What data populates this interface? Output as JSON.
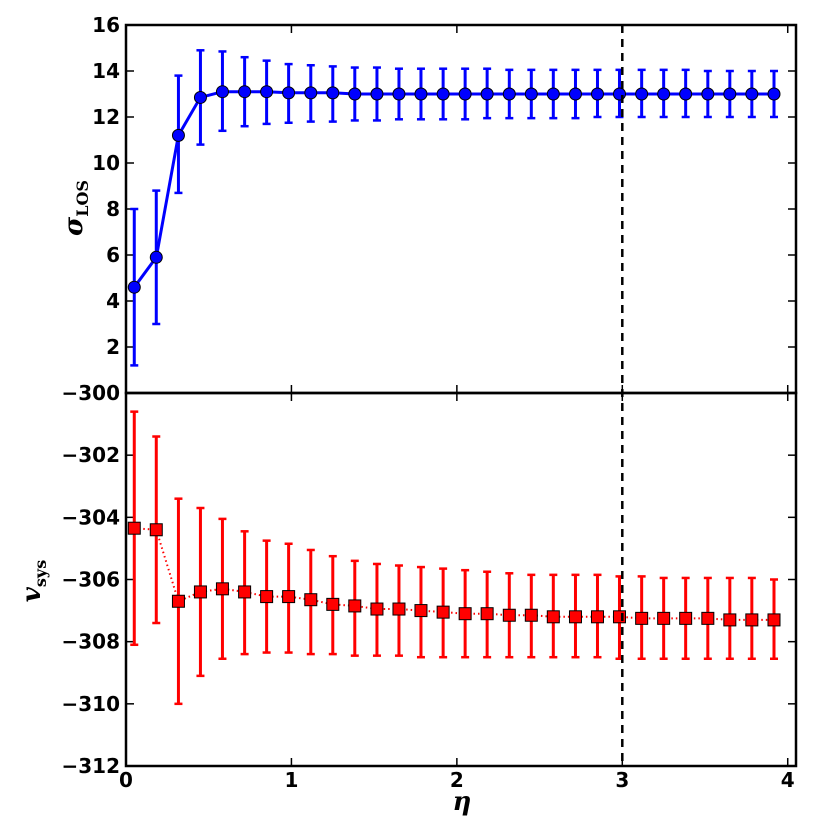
{
  "chart_data": [
    {
      "type": "line",
      "ylabel": "σ",
      "ylabel_sub": "LOS",
      "xlim": [
        0,
        4.05
      ],
      "ylim": [
        0,
        16
      ],
      "yticks": [
        2,
        4,
        6,
        8,
        10,
        12,
        14,
        16
      ],
      "color": "#0000ff",
      "marker": "circle",
      "linestyle": "solid",
      "x": [
        0.05,
        0.183,
        0.317,
        0.45,
        0.583,
        0.717,
        0.85,
        0.983,
        1.117,
        1.25,
        1.383,
        1.517,
        1.65,
        1.783,
        1.917,
        2.05,
        2.183,
        2.317,
        2.45,
        2.583,
        2.717,
        2.85,
        2.983,
        3.117,
        3.25,
        3.383,
        3.517,
        3.65,
        3.783,
        3.917
      ],
      "y": [
        4.6,
        5.9,
        11.2,
        12.85,
        13.1,
        13.1,
        13.1,
        13.05,
        13.05,
        13.05,
        13.0,
        13.0,
        13.0,
        13.0,
        13.0,
        13.0,
        13.0,
        13.0,
        13.0,
        13.0,
        13.0,
        13.0,
        13.0,
        13.0,
        13.0,
        13.0,
        13.0,
        13.0,
        13.0,
        13.0
      ],
      "yerr_low": [
        1.2,
        3.0,
        8.7,
        10.8,
        11.4,
        11.6,
        11.7,
        11.75,
        11.8,
        11.8,
        11.85,
        11.85,
        11.9,
        11.9,
        11.9,
        11.9,
        11.95,
        11.95,
        11.95,
        11.95,
        11.95,
        12.0,
        12.0,
        12.0,
        12.0,
        12.0,
        12.0,
        12.0,
        12.0,
        12.0
      ],
      "yerr_high": [
        8.0,
        8.8,
        13.8,
        14.9,
        14.85,
        14.6,
        14.45,
        14.3,
        14.25,
        14.2,
        14.15,
        14.15,
        14.1,
        14.1,
        14.1,
        14.1,
        14.1,
        14.05,
        14.05,
        14.05,
        14.05,
        14.05,
        14.05,
        14.05,
        14.05,
        14.05,
        14.0,
        14.0,
        14.0,
        14.0
      ]
    },
    {
      "type": "line",
      "xlabel": "η",
      "ylabel": "v",
      "ylabel_sub": "sys",
      "xlim": [
        0,
        4.05
      ],
      "ylim": [
        -312,
        -300
      ],
      "xticks": [
        0,
        1,
        2,
        3,
        4
      ],
      "yticks": [
        -312,
        -310,
        -308,
        -306,
        -304,
        -302,
        -300
      ],
      "ytick_labels": [
        "−312",
        "−310",
        "−308",
        "−306",
        "−304",
        "−302",
        "−300"
      ],
      "color": "#ff0000",
      "marker": "square",
      "linestyle": "dotted",
      "x": [
        0.05,
        0.183,
        0.317,
        0.45,
        0.583,
        0.717,
        0.85,
        0.983,
        1.117,
        1.25,
        1.383,
        1.517,
        1.65,
        1.783,
        1.917,
        2.05,
        2.183,
        2.317,
        2.45,
        2.583,
        2.717,
        2.85,
        2.983,
        3.117,
        3.25,
        3.383,
        3.517,
        3.65,
        3.783,
        3.917
      ],
      "y": [
        -304.35,
        -304.4,
        -306.7,
        -306.4,
        -306.3,
        -306.4,
        -306.55,
        -306.55,
        -306.65,
        -306.8,
        -306.85,
        -306.95,
        -306.95,
        -307.0,
        -307.05,
        -307.1,
        -307.1,
        -307.15,
        -307.15,
        -307.2,
        -307.2,
        -307.2,
        -307.2,
        -307.25,
        -307.25,
        -307.25,
        -307.25,
        -307.3,
        -307.3,
        -307.3
      ],
      "yerr_low": [
        -308.1,
        -307.4,
        -310.0,
        -309.1,
        -308.55,
        -308.4,
        -308.35,
        -308.35,
        -308.4,
        -308.4,
        -308.45,
        -308.45,
        -308.45,
        -308.5,
        -308.5,
        -308.5,
        -308.5,
        -308.5,
        -308.5,
        -308.5,
        -308.5,
        -308.5,
        -308.55,
        -308.55,
        -308.55,
        -308.55,
        -308.55,
        -308.55,
        -308.55,
        -308.55
      ],
      "yerr_high": [
        -300.6,
        -301.4,
        -303.4,
        -303.7,
        -304.05,
        -304.45,
        -304.75,
        -304.85,
        -305.05,
        -305.25,
        -305.4,
        -305.5,
        -305.55,
        -305.6,
        -305.65,
        -305.7,
        -305.75,
        -305.8,
        -305.85,
        -305.85,
        -305.85,
        -305.85,
        -305.9,
        -305.9,
        -305.95,
        -305.95,
        -305.95,
        -305.95,
        -305.95,
        -306.0
      ]
    }
  ],
  "reference_line": {
    "x": 3,
    "style": "dashed",
    "color": "#000000"
  }
}
